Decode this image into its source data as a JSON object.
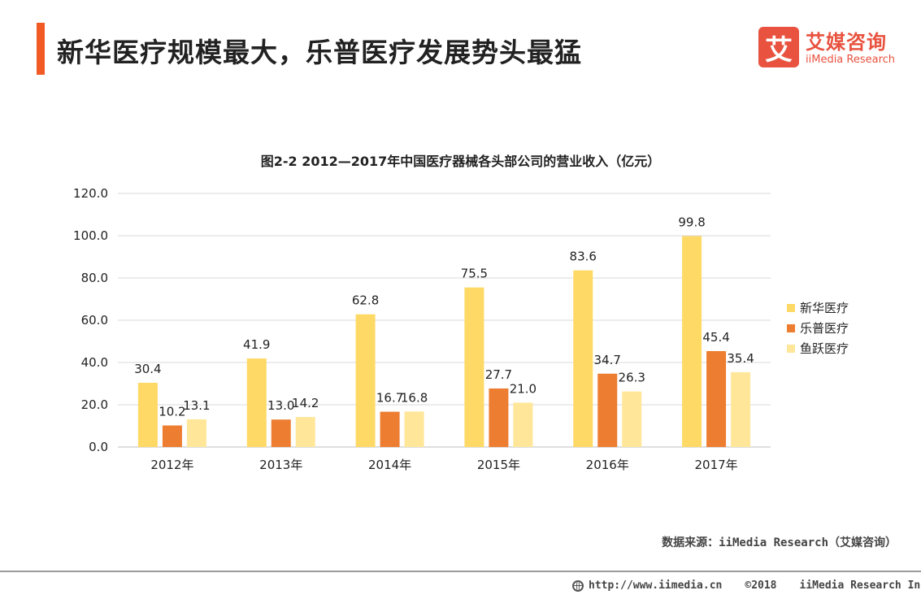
{
  "header": {
    "title": "新华医疗规模最大，乐普医疗发展势头最猛",
    "accent_color": "#f15a24"
  },
  "logo": {
    "mark": "艾",
    "name_cn": "艾媒咨询",
    "name_en": "iiMedia Research",
    "color": "#e8523f"
  },
  "chart_data": {
    "type": "bar",
    "title": "图2-2 2012—2017年中国医疗器械各头部公司的营业收入（亿元）",
    "categories": [
      "2012年",
      "2013年",
      "2014年",
      "2015年",
      "2016年",
      "2017年"
    ],
    "series": [
      {
        "name": "新华医疗",
        "color": "#ffd966",
        "values": [
          30.4,
          41.9,
          62.8,
          75.5,
          83.6,
          99.8
        ]
      },
      {
        "name": "乐普医疗",
        "color": "#ed7d31",
        "values": [
          10.2,
          13.0,
          16.7,
          27.7,
          34.7,
          45.4
        ]
      },
      {
        "name": "鱼跃医疗",
        "color": "#ffe699",
        "values": [
          13.1,
          14.2,
          16.8,
          21.0,
          26.3,
          35.4
        ]
      }
    ],
    "ylim": [
      0,
      120
    ],
    "yticks": [
      "0.0",
      "20.0",
      "40.0",
      "60.0",
      "80.0",
      "100.0",
      "120.0"
    ],
    "grid": true,
    "legend": "right"
  },
  "source": "数据来源：iiMedia Research（艾媒咨询）",
  "footer": {
    "url": "http://www.iimedia.cn",
    "copyright": "©2018",
    "company": "iiMedia Research Inc"
  }
}
